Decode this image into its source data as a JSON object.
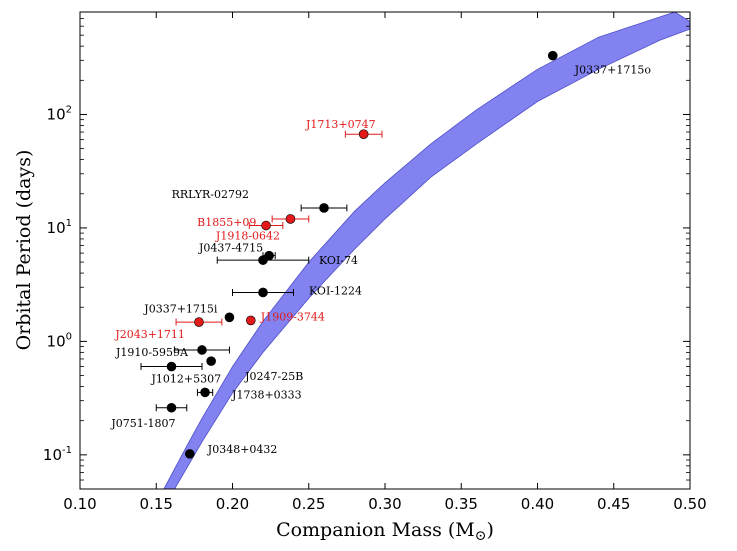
{
  "chart_data": {
    "type": "scatter",
    "xlabel": "Companion Mass (M",
    "xlabel_unit_symbol": "⊙",
    "xlabel_close": ")",
    "ylabel": "Orbital Period (days)",
    "xlim": [
      0.1,
      0.5
    ],
    "ylim": [
      0.05,
      800
    ],
    "y_scale": "log",
    "x_ticks": [
      {
        "value": 0.1,
        "label": "0.10"
      },
      {
        "value": 0.15,
        "label": "0.15"
      },
      {
        "value": 0.2,
        "label": "0.20"
      },
      {
        "value": 0.25,
        "label": "0.25"
      },
      {
        "value": 0.3,
        "label": "0.30"
      },
      {
        "value": 0.35,
        "label": "0.35"
      },
      {
        "value": 0.4,
        "label": "0.40"
      },
      {
        "value": 0.45,
        "label": "0.45"
      },
      {
        "value": 0.5,
        "label": "0.50"
      }
    ],
    "y_ticks": [
      {
        "value": 0.1,
        "base": "10",
        "exp": "-1"
      },
      {
        "value": 1,
        "base": "10",
        "exp": "0"
      },
      {
        "value": 10,
        "base": "10",
        "exp": "1"
      },
      {
        "value": 100,
        "base": "10",
        "exp": "2"
      }
    ],
    "band": {
      "color": "#7b7bf0",
      "edge_color": "#5050c8",
      "upper": [
        [
          0.155,
          0.05
        ],
        [
          0.17,
          0.12
        ],
        [
          0.18,
          0.21
        ],
        [
          0.2,
          0.6
        ],
        [
          0.22,
          1.5
        ],
        [
          0.25,
          5.0
        ],
        [
          0.28,
          14
        ],
        [
          0.3,
          25
        ],
        [
          0.33,
          55
        ],
        [
          0.36,
          110
        ],
        [
          0.4,
          250
        ],
        [
          0.44,
          480
        ],
        [
          0.49,
          800
        ]
      ],
      "lower": [
        [
          0.162,
          0.05
        ],
        [
          0.18,
          0.13
        ],
        [
          0.2,
          0.35
        ],
        [
          0.22,
          0.8
        ],
        [
          0.25,
          2.4
        ],
        [
          0.28,
          6.5
        ],
        [
          0.3,
          12
        ],
        [
          0.33,
          28
        ],
        [
          0.36,
          55
        ],
        [
          0.4,
          130
        ],
        [
          0.44,
          250
        ],
        [
          0.48,
          450
        ],
        [
          0.505,
          600
        ]
      ]
    },
    "points": [
      {
        "name": "J0337+1715o",
        "x": 0.41,
        "y": 330,
        "xerr": 0,
        "color": "#000000",
        "label_pos": "below-right"
      },
      {
        "name": "J1713+0747",
        "x": 0.286,
        "y": 67,
        "xerr": 0.012,
        "color": "#e31a1a",
        "label_pos": "above-left"
      },
      {
        "name": "RRLYR-02792",
        "x": 0.26,
        "y": 15,
        "xerr": 0.015,
        "color": "#000000",
        "label_pos": "left-high"
      },
      {
        "name": "B1855+09",
        "x": 0.238,
        "y": 12,
        "xerr": 0.012,
        "color": "#e31a1a",
        "label_pos": "left"
      },
      {
        "name": "J1918-0642",
        "x": 0.222,
        "y": 10.5,
        "xerr": 0.011,
        "color": "#e31a1a",
        "label_pos": "below-left"
      },
      {
        "name": "J0437-4715",
        "x": 0.224,
        "y": 5.7,
        "xerr": 0.004,
        "color": "#000000",
        "label_pos": "left-high"
      },
      {
        "name": "KOI-74",
        "x": 0.22,
        "y": 5.2,
        "xerr": 0.03,
        "color": "#000000",
        "label_pos": "right-low"
      },
      {
        "name": "KOI-1224",
        "x": 0.22,
        "y": 2.7,
        "xerr": 0.02,
        "color": "#000000",
        "label_pos": "right"
      },
      {
        "name": "J0337+1715i",
        "x": 0.198,
        "y": 1.63,
        "xerr": 0,
        "color": "#000000",
        "label_pos": "left-high"
      },
      {
        "name": "J1909-3744",
        "x": 0.212,
        "y": 1.53,
        "xerr": 0.002,
        "color": "#e31a1a",
        "label_pos": "right"
      },
      {
        "name": "J2043+1711",
        "x": 0.178,
        "y": 1.48,
        "xerr": 0.015,
        "color": "#e31a1a",
        "label_pos": "below-left"
      },
      {
        "name": "J1910-5959A",
        "x": 0.18,
        "y": 0.84,
        "xerr": 0.018,
        "color": "#000000",
        "label_pos": "left"
      },
      {
        "name": "J0247-25B",
        "x": 0.186,
        "y": 0.67,
        "xerr": 0,
        "color": "#000000",
        "label_pos": "below-right"
      },
      {
        "name": "J1012+5307",
        "x": 0.16,
        "y": 0.6,
        "xerr": 0.02,
        "color": "#000000",
        "label_pos": "below"
      },
      {
        "name": "J1738+0333",
        "x": 0.182,
        "y": 0.355,
        "xerr": 0.005,
        "color": "#000000",
        "label_pos": "right-low"
      },
      {
        "name": "J0751-1807",
        "x": 0.16,
        "y": 0.26,
        "xerr": 0.01,
        "color": "#000000",
        "label_pos": "below-left"
      },
      {
        "name": "J0348+0432",
        "x": 0.172,
        "y": 0.102,
        "xerr": 0,
        "color": "#000000",
        "label_pos": "right-high"
      }
    ]
  }
}
